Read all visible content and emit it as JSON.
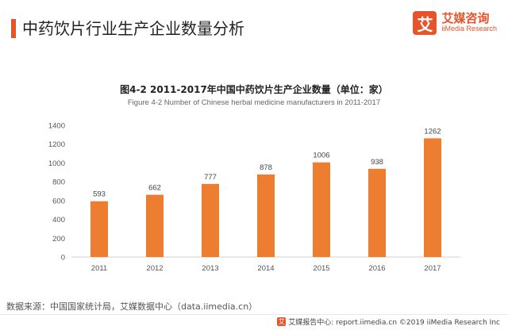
{
  "header": {
    "title": "中药饮片行业生产企业数量分析",
    "accent_color": "#e8542a"
  },
  "logo": {
    "mark": "艾",
    "cn": "艾媒咨询",
    "en": "iiMedia Research",
    "color": "#e8542a"
  },
  "chart_data": {
    "type": "bar",
    "title": "图4-2 2011-2017年中国中药饮片生产企业数量（单位：家）",
    "subtitle": "Figure 4-2 Number of Chinese herbal medicine manufacturers in 2011-2017",
    "categories": [
      "2011",
      "2012",
      "2013",
      "2014",
      "2015",
      "2016",
      "2017"
    ],
    "values": [
      593,
      662,
      777,
      878,
      1006,
      938,
      1262
    ],
    "ylim": [
      0,
      1400
    ],
    "yticks": [
      0,
      200,
      400,
      600,
      800,
      1000,
      1200,
      1400
    ],
    "bar_color": "#ed7d31",
    "grid": false,
    "legend": "none"
  },
  "source": "数据来源：中国国家统计局，艾媒数据中心（data.iimedia.cn）",
  "footer": {
    "mark": "艾",
    "text": "艾媒报告中心: report.iimedia.cn ©2019  iiMedia Research Inc"
  }
}
